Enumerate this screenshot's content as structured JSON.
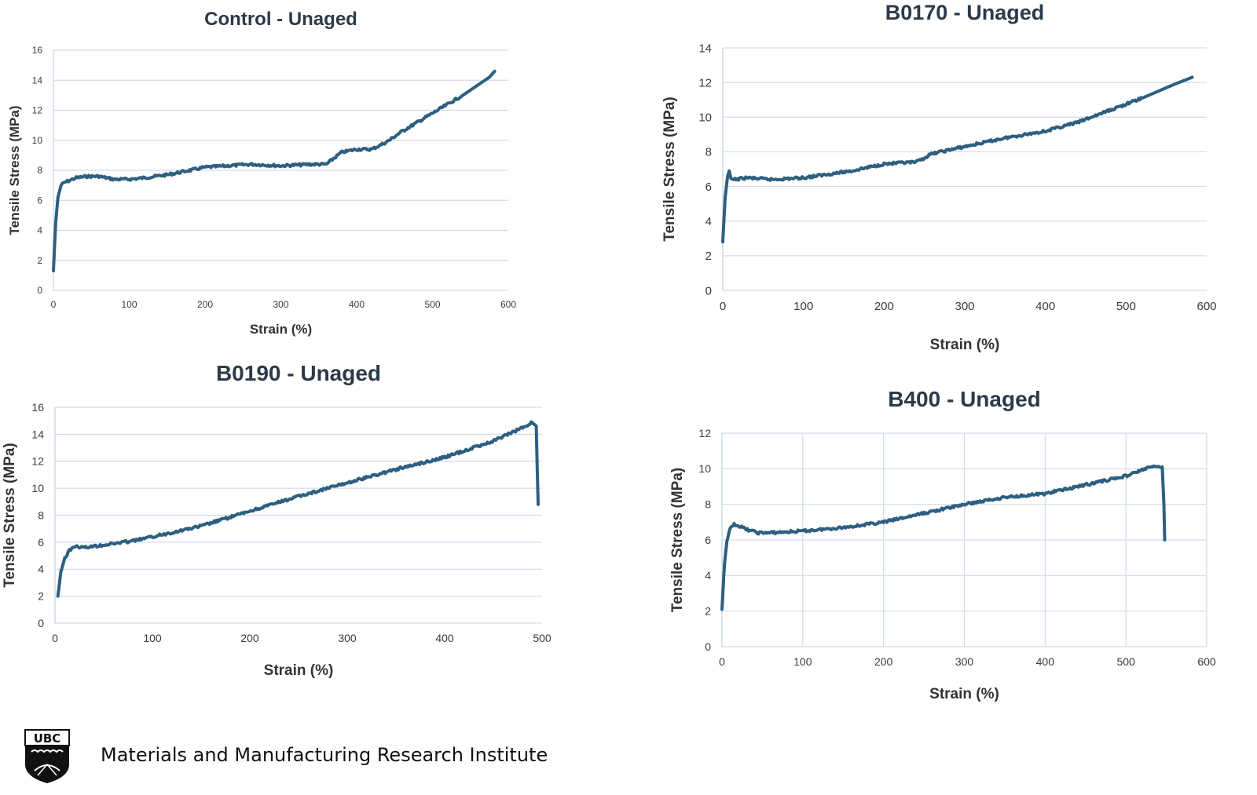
{
  "chart_data": [
    {
      "type": "line",
      "title": "Control - Unaged",
      "xlabel": "Strain (%)",
      "ylabel": "Tensile Stress (MPa)",
      "xlim": [
        0,
        600
      ],
      "ylim": [
        0,
        16
      ],
      "xticks": [
        0,
        100,
        200,
        300,
        400,
        500,
        600
      ],
      "yticks": [
        0,
        2,
        4,
        6,
        8,
        10,
        12,
        14,
        16
      ],
      "grid": "horizontal",
      "series": [
        {
          "x": [
            0,
            3,
            6,
            10,
            15,
            20,
            30,
            45,
            60,
            80,
            100,
            120,
            150,
            170,
            200,
            230,
            260,
            300,
            340,
            360,
            380,
            400,
            420,
            440,
            460,
            500,
            540,
            575,
            582
          ],
          "values": [
            1.3,
            4.5,
            6.2,
            7.0,
            7.2,
            7.3,
            7.5,
            7.6,
            7.6,
            7.4,
            7.4,
            7.5,
            7.7,
            7.9,
            8.2,
            8.3,
            8.4,
            8.3,
            8.4,
            8.4,
            9.2,
            9.4,
            9.4,
            9.9,
            10.6,
            11.8,
            13.0,
            14.2,
            14.6
          ]
        }
      ]
    },
    {
      "type": "line",
      "title": "B0170 - Unaged",
      "xlabel": "Strain (%)",
      "ylabel": "Tensile Stress (MPa)",
      "xlim": [
        0,
        600
      ],
      "ylim": [
        0,
        14
      ],
      "xticks": [
        0,
        100,
        200,
        300,
        400,
        500,
        600
      ],
      "yticks": [
        0,
        2,
        4,
        6,
        8,
        10,
        12,
        14
      ],
      "grid": "horizontal",
      "series": [
        {
          "x": [
            0,
            3,
            6,
            8,
            10,
            15,
            30,
            60,
            100,
            130,
            160,
            200,
            240,
            260,
            280,
            300,
            350,
            400,
            440,
            480,
            520,
            560,
            582
          ],
          "values": [
            2.8,
            5.4,
            6.6,
            6.9,
            6.4,
            6.4,
            6.5,
            6.4,
            6.5,
            6.7,
            6.9,
            7.3,
            7.4,
            7.9,
            8.1,
            8.3,
            8.8,
            9.2,
            9.7,
            10.4,
            11.1,
            11.9,
            12.3
          ]
        }
      ]
    },
    {
      "type": "line",
      "title": "B0190 - Unaged",
      "xlabel": "Strain (%)",
      "ylabel": "Tensile Stress (MPa)",
      "xlim": [
        0,
        500
      ],
      "ylim": [
        0,
        16
      ],
      "xticks": [
        0,
        100,
        200,
        300,
        400,
        500
      ],
      "yticks": [
        0,
        2,
        4,
        6,
        8,
        10,
        12,
        14,
        16
      ],
      "grid": "horizontal",
      "series": [
        {
          "x": [
            3,
            6,
            10,
            15,
            20,
            30,
            50,
            80,
            100,
            150,
            200,
            250,
            300,
            350,
            400,
            450,
            480,
            490,
            494,
            495,
            496
          ],
          "values": [
            2.0,
            3.8,
            4.8,
            5.4,
            5.7,
            5.6,
            5.8,
            6.1,
            6.4,
            7.2,
            8.3,
            9.4,
            10.4,
            11.4,
            12.3,
            13.5,
            14.5,
            14.9,
            14.6,
            11.5,
            8.8
          ]
        }
      ]
    },
    {
      "type": "line",
      "title": "B400 - Unaged",
      "xlabel": "Strain (%)",
      "ylabel": "Tensile Stress (MPa)",
      "xlim": [
        0,
        600
      ],
      "ylim": [
        0,
        12
      ],
      "xticks": [
        0,
        100,
        200,
        300,
        400,
        500,
        600
      ],
      "yticks": [
        0,
        2,
        4,
        6,
        8,
        10,
        12
      ],
      "grid": "both",
      "series": [
        {
          "x": [
            0,
            3,
            6,
            10,
            15,
            20,
            30,
            45,
            60,
            100,
            150,
            200,
            250,
            300,
            350,
            400,
            450,
            500,
            530,
            545,
            547,
            548
          ],
          "values": [
            2.1,
            4.6,
            5.9,
            6.6,
            6.9,
            6.8,
            6.6,
            6.4,
            6.4,
            6.5,
            6.7,
            7.0,
            7.5,
            8.0,
            8.4,
            8.6,
            9.1,
            9.6,
            10.1,
            10.1,
            8.0,
            6.0
          ]
        }
      ]
    }
  ],
  "footer": {
    "logo_text": "UBC",
    "institute": "Materials and Manufacturing Research Institute"
  },
  "colors": {
    "line": "#2e5f80",
    "grid": "#d0dcea",
    "axis_text": "#3a3a3a",
    "title": "#2b3a4a"
  }
}
